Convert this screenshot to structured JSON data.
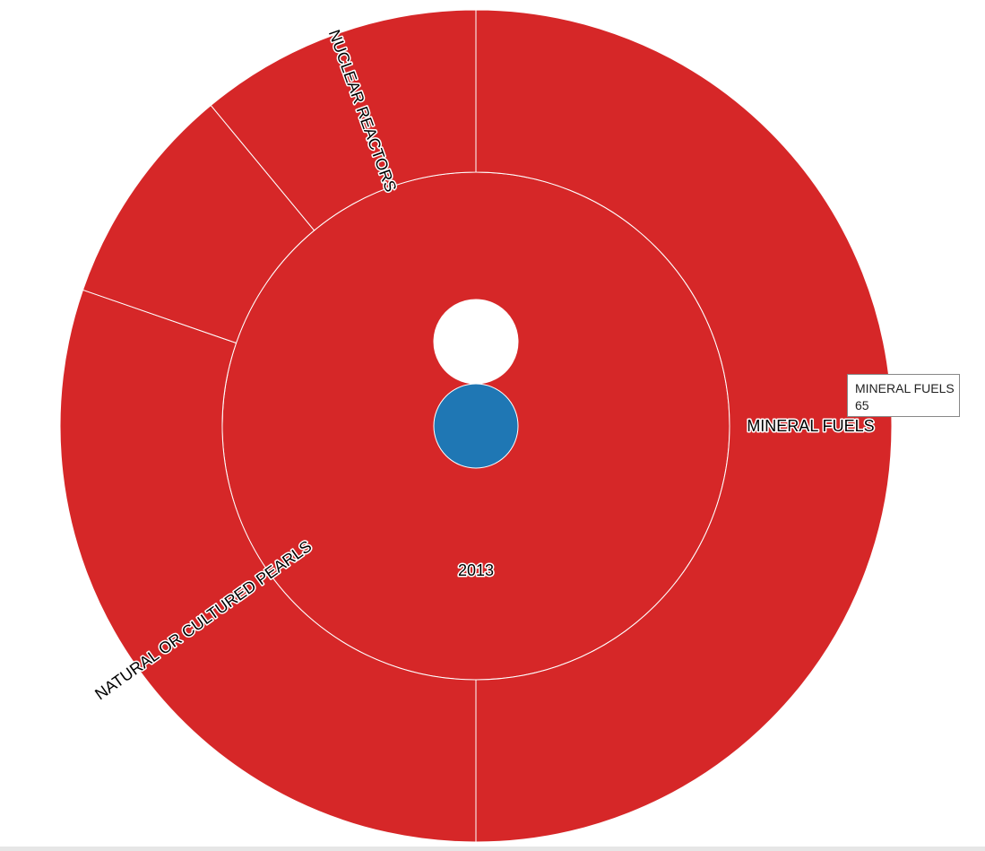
{
  "chart_data": {
    "type": "sunburst",
    "root": {
      "name": "",
      "color": "#1f77b4"
    },
    "rings": [
      {
        "level": 1,
        "segments": [
          {
            "name": "2013",
            "share": 1.0,
            "color": "#d62728"
          }
        ]
      },
      {
        "level": 2,
        "segments": [
          {
            "name": "MINERAL FUELS",
            "share": 0.5,
            "color": "#d62728"
          },
          {
            "name": "NATURAL OR CULTURED PEARLS",
            "share": 0.303,
            "color": "#d62728"
          },
          {
            "name": "",
            "share": 0.087,
            "color": "#d62728"
          },
          {
            "name": "NUCLEAR REACTORS",
            "share": 0.11,
            "color": "#d62728"
          }
        ]
      }
    ]
  },
  "tooltip": {
    "name": "MINERAL FUELS",
    "value": "65"
  }
}
